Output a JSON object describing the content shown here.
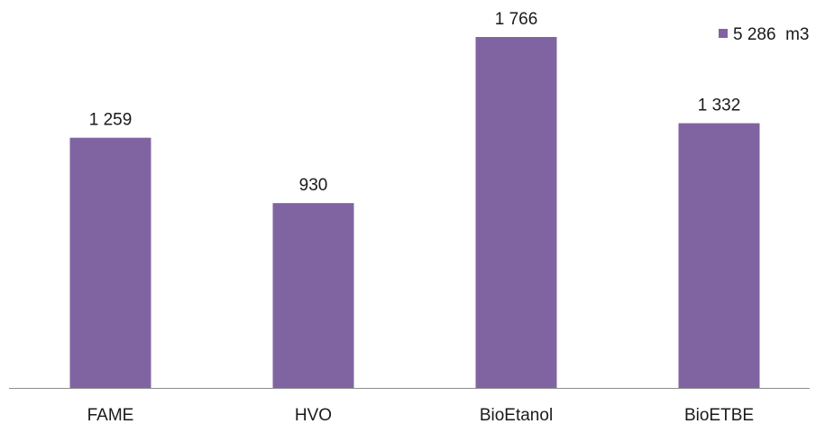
{
  "chart_data": {
    "type": "bar",
    "categories": [
      "FAME",
      "HVO",
      "BioEtanol",
      "BioETBE"
    ],
    "series": [
      {
        "name": "5 286  m3",
        "values": [
          1259,
          930,
          1766,
          1332
        ],
        "value_labels": [
          "1 259",
          "930",
          "1 766",
          "1 332"
        ],
        "color": "#8064a2"
      }
    ],
    "title": "",
    "xlabel": "",
    "ylabel": "",
    "ylim": [
      0,
      1766
    ],
    "grid": false,
    "legend_position": "top-right"
  }
}
